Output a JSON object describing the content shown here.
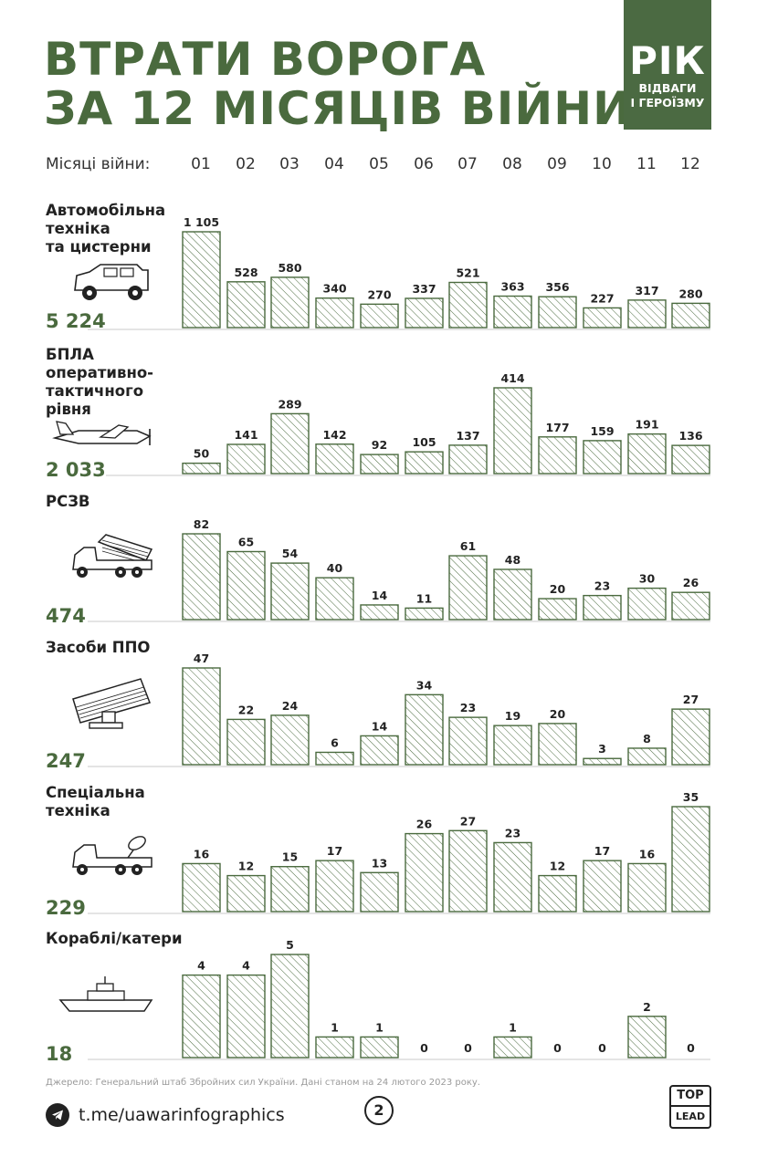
{
  "title": {
    "line1": "ВТРАТИ ВОРОГА",
    "line2": "ЗА 12 МІСЯЦІВ ВІЙНИ"
  },
  "badge": {
    "big": "РІК",
    "line1": "ВІДВАГИ",
    "line2": "І ГЕРОЇЗМУ"
  },
  "months_label": "Місяці війни:",
  "colors": {
    "accent": "#4a6a3e",
    "badge": "#4b6a42",
    "bar_stroke": "#4a6a3e"
  },
  "chart_data": {
    "type": "bar",
    "title": "ВТРАТИ ВОРОГА ЗА 12 МІСЯЦІВ ВІЙНИ",
    "xlabel": "Місяці війни:",
    "categories": [
      "01",
      "02",
      "03",
      "04",
      "05",
      "06",
      "07",
      "08",
      "09",
      "10",
      "11",
      "12"
    ],
    "series": [
      {
        "name": "Автомобільна техніка та цистерни",
        "label_lines": [
          "Автомобільна",
          "техніка",
          "та цистерни"
        ],
        "icon": "jeep-icon",
        "total": "5 224",
        "values": [
          1105,
          528,
          580,
          340,
          270,
          337,
          521,
          363,
          356,
          227,
          317,
          280
        ],
        "value_labels": [
          "1 105",
          "528",
          "580",
          "340",
          "270",
          "337",
          "521",
          "363",
          "356",
          "227",
          "317",
          "280"
        ]
      },
      {
        "name": "БПЛА оперативно-тактичного рівня",
        "label_lines": [
          "БПЛА",
          "оперативно-",
          "тактичного",
          "рівня"
        ],
        "icon": "drone-icon",
        "total": "2 033",
        "values": [
          50,
          141,
          289,
          142,
          92,
          105,
          137,
          414,
          177,
          159,
          191,
          136
        ],
        "value_labels": [
          "50",
          "141",
          "289",
          "142",
          "92",
          "105",
          "137",
          "414",
          "177",
          "159",
          "191",
          "136"
        ]
      },
      {
        "name": "РСЗВ",
        "label_lines": [
          "РСЗВ"
        ],
        "icon": "mlrs-icon",
        "total": "474",
        "values": [
          82,
          65,
          54,
          40,
          14,
          11,
          61,
          48,
          20,
          23,
          30,
          26
        ],
        "value_labels": [
          "82",
          "65",
          "54",
          "40",
          "14",
          "11",
          "61",
          "48",
          "20",
          "23",
          "30",
          "26"
        ]
      },
      {
        "name": "Засоби ППО",
        "label_lines": [
          "Засоби ППО"
        ],
        "icon": "air-defense-icon",
        "total": "247",
        "values": [
          47,
          22,
          24,
          6,
          14,
          34,
          23,
          19,
          20,
          3,
          8,
          27
        ],
        "value_labels": [
          "47",
          "22",
          "24",
          "6",
          "14",
          "34",
          "23",
          "19",
          "20",
          "3",
          "8",
          "27"
        ]
      },
      {
        "name": "Спеціальна техніка",
        "label_lines": [
          "Спеціальна",
          "техніка"
        ],
        "icon": "special-vehicle-icon",
        "total": "229",
        "values": [
          16,
          12,
          15,
          17,
          13,
          26,
          27,
          23,
          12,
          17,
          16,
          35
        ],
        "value_labels": [
          "16",
          "12",
          "15",
          "17",
          "13",
          "26",
          "27",
          "23",
          "12",
          "17",
          "16",
          "35"
        ]
      },
      {
        "name": "Кораблі/катери",
        "label_lines": [
          "Кораблі/катери"
        ],
        "icon": "ship-icon",
        "total": "18",
        "values": [
          4,
          4,
          5,
          1,
          1,
          0,
          0,
          1,
          0,
          0,
          2,
          0
        ],
        "value_labels": [
          "4",
          "4",
          "5",
          "1",
          "1",
          "0",
          "0",
          "1",
          "0",
          "0",
          "2",
          "0"
        ]
      }
    ]
  },
  "source": "Джерело: Генеральний штаб Збройних сил України. Дані станом на 24 лютого 2023 року.",
  "telegram": {
    "icon": "telegram-icon",
    "text": "t.me/uawarinfographics"
  },
  "page_number": "2",
  "logo": {
    "line1": "TOP",
    "line2": "LEAD"
  }
}
